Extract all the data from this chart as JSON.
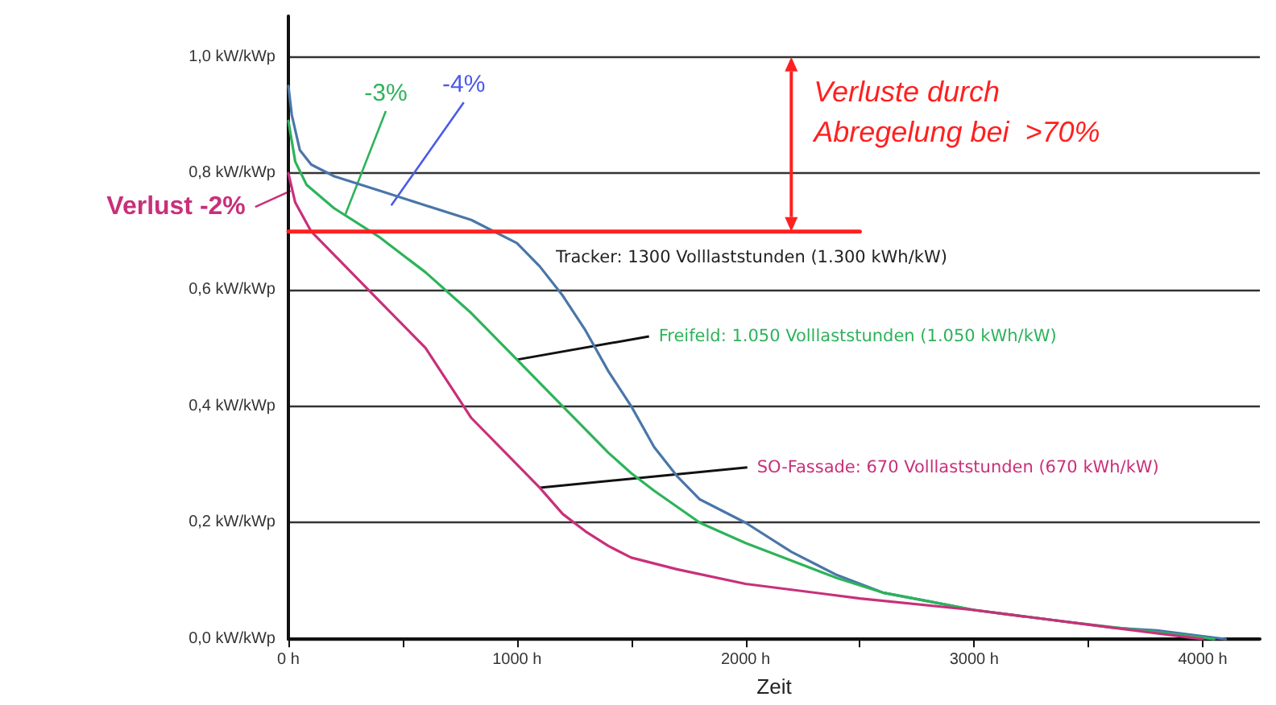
{
  "chart_data": {
    "type": "line",
    "xlabel": "Zeit",
    "xlim": [
      0,
      4250
    ],
    "ylim": [
      0,
      1.07
    ],
    "xticks": [
      {
        "value": 0,
        "label": "0 h"
      },
      {
        "value": 500,
        "label": null
      },
      {
        "value": 1000,
        "label": "1000 h"
      },
      {
        "value": 1500,
        "label": null
      },
      {
        "value": 2000,
        "label": "2000 h"
      },
      {
        "value": 2500,
        "label": null
      },
      {
        "value": 3000,
        "label": "3000 h"
      },
      {
        "value": 3500,
        "label": null
      },
      {
        "value": 4000,
        "label": "4000 h"
      }
    ],
    "yticks": [
      {
        "value": 0,
        "label": "0,0 kW/kWp"
      },
      {
        "value": 0.2,
        "label": "0,2 kW/kWp"
      },
      {
        "value": 0.4,
        "label": "0,4 kW/kWp"
      },
      {
        "value": 0.6,
        "label": "0,6 kW/kWp"
      },
      {
        "value": 0.8,
        "label": "0,8 kW/kWp"
      },
      {
        "value": 1.0,
        "label": "1,0 kW/kWp"
      }
    ],
    "grid": "y",
    "marker": "none",
    "line_style": "solid",
    "series": [
      {
        "name": "Tracker: 1300 Volllaststunden (1.300 kWh/kW)",
        "color": "#4a76a8",
        "x": [
          0,
          15,
          50,
          100,
          200,
          400,
          600,
          800,
          1000,
          1100,
          1200,
          1300,
          1400,
          1500,
          1600,
          1700,
          1800,
          2000,
          2200,
          2400,
          2600,
          2800,
          3000,
          3200,
          3400,
          3600,
          3800,
          4000,
          4100
        ],
        "values": [
          0.95,
          0.9,
          0.84,
          0.815,
          0.795,
          0.77,
          0.745,
          0.72,
          0.68,
          0.64,
          0.59,
          0.53,
          0.46,
          0.4,
          0.33,
          0.28,
          0.24,
          0.2,
          0.15,
          0.11,
          0.08,
          0.065,
          0.05,
          0.04,
          0.03,
          0.02,
          0.015,
          0.005,
          0
        ]
      },
      {
        "name": "Freifeld: 1.050 Volllaststunden (1.050 kWh/kW)",
        "color": "#2db35a",
        "x": [
          0,
          30,
          80,
          200,
          400,
          600,
          800,
          1000,
          1200,
          1300,
          1400,
          1500,
          1600,
          1800,
          2000,
          2200,
          2400,
          2600,
          2800,
          3000,
          3400,
          3800,
          4050
        ],
        "values": [
          0.89,
          0.82,
          0.78,
          0.74,
          0.69,
          0.63,
          0.56,
          0.48,
          0.4,
          0.36,
          0.32,
          0.285,
          0.255,
          0.2,
          0.165,
          0.135,
          0.105,
          0.08,
          0.065,
          0.05,
          0.03,
          0.012,
          0
        ]
      },
      {
        "name": "SO-Fassade: 670 Volllaststunden (670 kWh/kW)",
        "color": "#c8307a",
        "x": [
          0,
          30,
          100,
          200,
          300,
          400,
          600,
          800,
          1000,
          1100,
          1200,
          1300,
          1400,
          1500,
          1700,
          2000,
          2500,
          3000,
          3500,
          3800,
          4000
        ],
        "values": [
          0.8,
          0.75,
          0.7,
          0.66,
          0.62,
          0.58,
          0.5,
          0.38,
          0.3,
          0.26,
          0.215,
          0.185,
          0.16,
          0.14,
          0.12,
          0.095,
          0.07,
          0.05,
          0.025,
          0.01,
          0
        ]
      },
      {
        "color": "#ff2020",
        "x": [
          0,
          2500
        ],
        "values": [
          0.7,
          0.7
        ]
      }
    ],
    "annotations": [
      {
        "text": "Verlust -2%",
        "x": 10,
        "y": 0.77
      },
      {
        "text": "-3%",
        "x": 250,
        "y": 0.73
      },
      "-4%",
      "Verluste durch\nAbregelung bei  >70%"
    ]
  }
}
